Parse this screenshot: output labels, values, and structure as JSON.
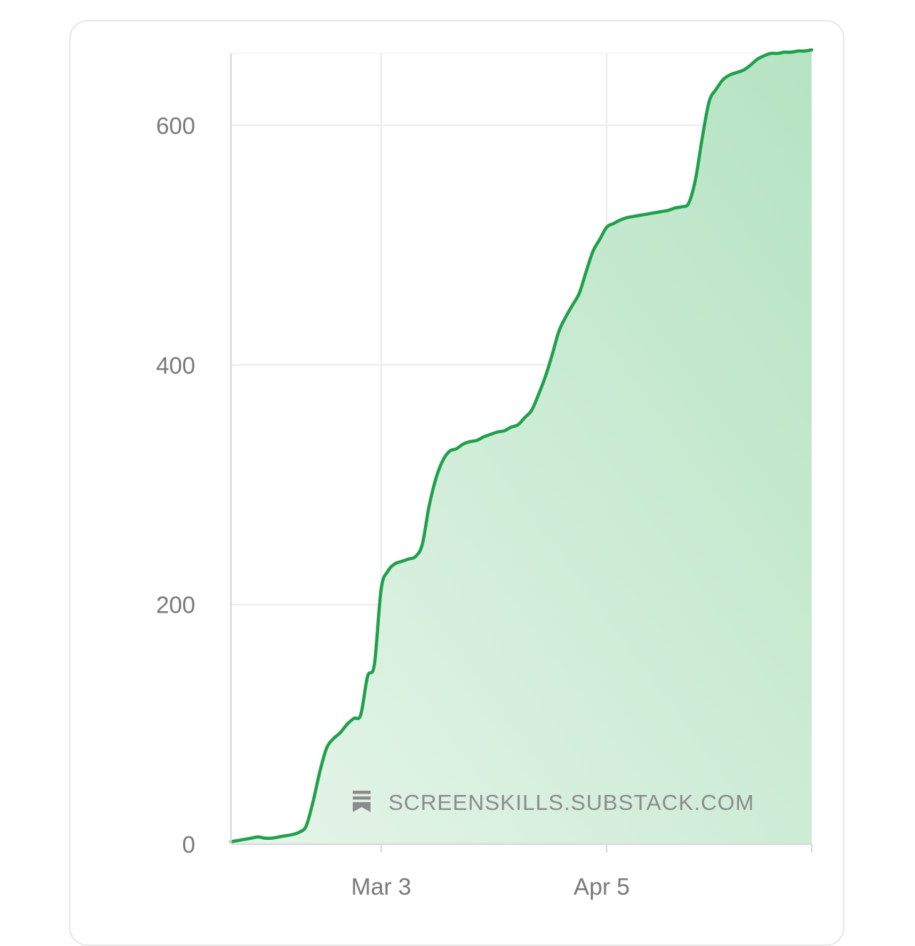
{
  "chart_data": {
    "type": "area",
    "title": "",
    "xlabel": "",
    "ylabel": "",
    "x_ticks": [
      "Mar 3",
      "Apr 5"
    ],
    "y_ticks": [
      0,
      200,
      400,
      600
    ],
    "ylim": [
      0,
      660
    ],
    "grid": true,
    "legend": "none",
    "watermark": "SCREENSKILLS.SUBSTACK.COM",
    "x": [
      "Feb 10",
      "Feb 11",
      "Feb 12",
      "Feb 13",
      "Feb 14",
      "Feb 15",
      "Feb 16",
      "Feb 17",
      "Feb 18",
      "Feb 19",
      "Feb 20",
      "Feb 21",
      "Feb 22",
      "Feb 23",
      "Feb 24",
      "Feb 25",
      "Feb 26",
      "Feb 27",
      "Feb 28",
      "Feb 29",
      "Mar 1",
      "Mar 2",
      "Mar 3",
      "Mar 4",
      "Mar 5",
      "Mar 6",
      "Mar 7",
      "Mar 8",
      "Mar 9",
      "Mar 10",
      "Mar 11",
      "Mar 12",
      "Mar 13",
      "Mar 14",
      "Mar 15",
      "Mar 16",
      "Mar 17",
      "Mar 18",
      "Mar 19",
      "Mar 20",
      "Mar 21",
      "Mar 22",
      "Mar 23",
      "Mar 24",
      "Mar 25",
      "Mar 26",
      "Mar 27",
      "Mar 28",
      "Mar 29",
      "Mar 30",
      "Mar 31",
      "Apr 1",
      "Apr 2",
      "Apr 3",
      "Apr 4",
      "Apr 5",
      "Apr 6",
      "Apr 7",
      "Apr 8",
      "Apr 9",
      "Apr 10",
      "Apr 11",
      "Apr 12",
      "Apr 13",
      "Apr 14",
      "Apr 15",
      "Apr 16",
      "Apr 17",
      "Apr 18",
      "Apr 19",
      "Apr 20",
      "Apr 21",
      "Apr 22",
      "Apr 23",
      "Apr 24",
      "Apr 25",
      "Apr 26",
      "Apr 27",
      "Apr 28",
      "Apr 29",
      "Apr 30",
      "May 1",
      "May 2",
      "May 3",
      "May 4",
      "May 5"
    ],
    "series": [
      {
        "values": [
          2,
          3,
          4,
          5,
          6,
          5,
          5,
          6,
          7,
          8,
          10,
          15,
          35,
          60,
          80,
          88,
          93,
          100,
          105,
          108,
          140,
          150,
          213,
          228,
          234,
          236,
          238,
          240,
          250,
          282,
          305,
          320,
          328,
          330,
          334,
          336,
          337,
          340,
          342,
          344,
          345,
          348,
          350,
          356,
          362,
          375,
          390,
          408,
          428,
          440,
          450,
          460,
          478,
          495,
          505,
          515,
          518,
          521,
          523,
          524,
          525,
          526,
          527,
          528,
          529,
          531,
          532,
          535,
          555,
          590,
          620,
          630,
          638,
          642,
          644,
          646,
          650,
          655,
          658,
          660,
          660,
          661,
          661,
          662,
          662,
          663
        ]
      }
    ],
    "colors": {
      "line": "#1fa14a",
      "fill_top": "#b5e3c2",
      "fill_bottom": "#e6f5ea",
      "grid": "#ebebeb",
      "axis": "#dadada",
      "tick_text": "#7a7a7a",
      "watermark": "#8c8c8c"
    }
  }
}
